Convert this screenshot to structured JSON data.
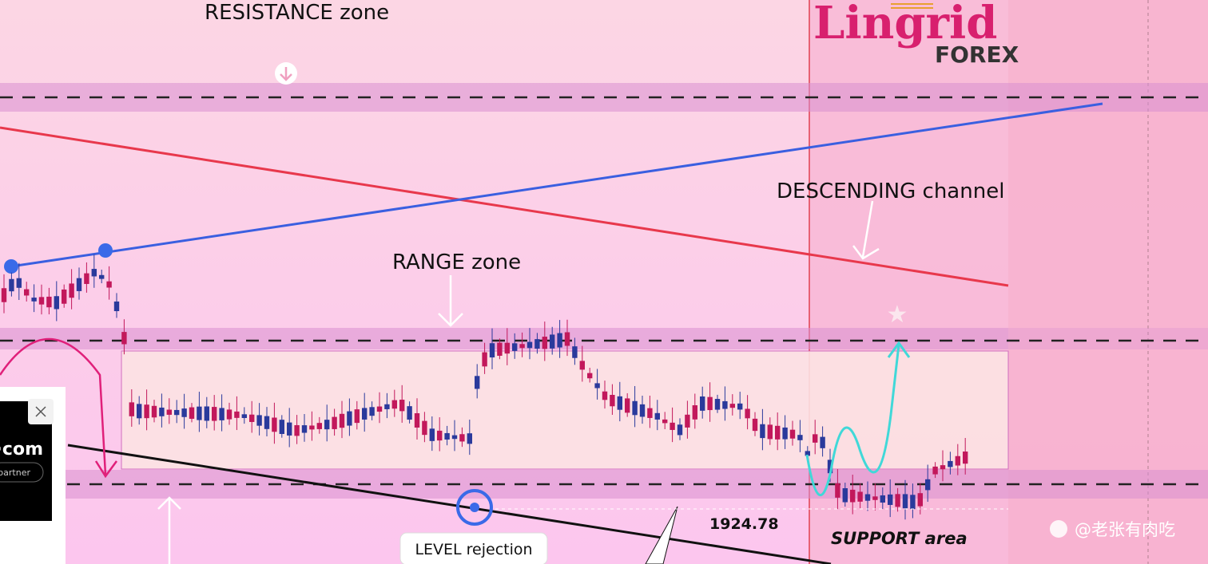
{
  "header": {
    "brand": "Lingrid",
    "brand_sub": "FOREX"
  },
  "annotations": {
    "resistance": "RESISTANCE zone",
    "channel": "DESCENDING channel",
    "range": "RANGE zone",
    "price": "1924.78",
    "support": "SUPPORT area",
    "rejection": "LEVEL rejection"
  },
  "ad": {
    "site": "l·com",
    "tagline": "partner"
  },
  "watermark": "@老张有肉吃"
}
